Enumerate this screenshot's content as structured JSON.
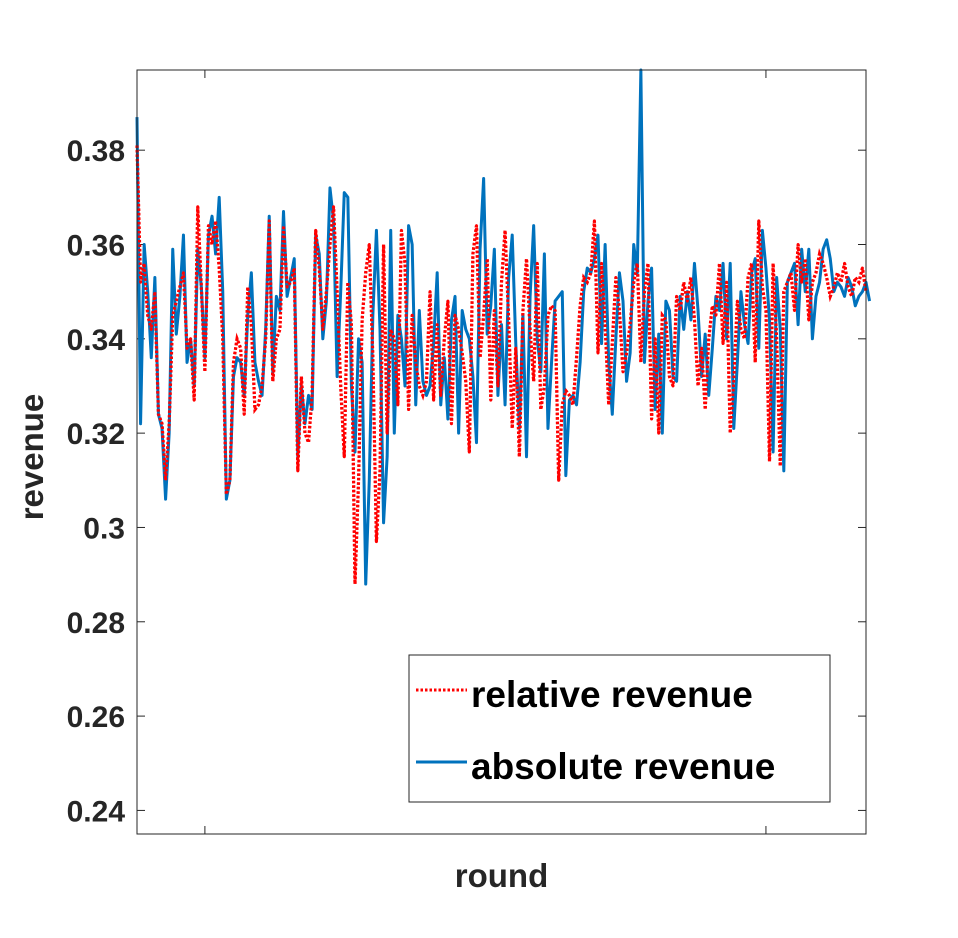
{
  "chart_data": {
    "type": "line",
    "title": "",
    "xlabel": "round",
    "ylabel": "revenue",
    "ylim": [
      0.235,
      0.397
    ],
    "xlim": [
      1,
      205
    ],
    "yticks": [
      0.24,
      0.26,
      0.28,
      0.3,
      0.32,
      0.34,
      0.36,
      0.38
    ],
    "ytick_labels": [
      "0.24",
      "0.26",
      "0.28",
      "0.3",
      "0.32",
      "0.34",
      "0.36",
      "0.38"
    ],
    "xticks": [
      20,
      177
    ],
    "xtick_labels": [
      "",
      ""
    ],
    "legend_position": "bottom-right",
    "grid": false,
    "series": [
      {
        "name": "relative revenue",
        "color": "#ff0000",
        "style": "dotted",
        "values": [
          0.381,
          0.352,
          0.356,
          0.345,
          0.342,
          0.35,
          0.324,
          0.322,
          0.31,
          0.322,
          0.345,
          0.348,
          0.351,
          0.354,
          0.338,
          0.34,
          0.327,
          0.368,
          0.351,
          0.333,
          0.364,
          0.36,
          0.365,
          0.355,
          0.34,
          0.307,
          0.31,
          0.335,
          0.34,
          0.338,
          0.324,
          0.351,
          0.343,
          0.325,
          0.326,
          0.33,
          0.34,
          0.365,
          0.331,
          0.34,
          0.342,
          0.364,
          0.351,
          0.352,
          0.355,
          0.312,
          0.332,
          0.32,
          0.318,
          0.328,
          0.363,
          0.355,
          0.342,
          0.35,
          0.36,
          0.368,
          0.35,
          0.33,
          0.315,
          0.352,
          0.343,
          0.288,
          0.31,
          0.344,
          0.354,
          0.36,
          0.336,
          0.297,
          0.312,
          0.36,
          0.32,
          0.342,
          0.34,
          0.326,
          0.363,
          0.356,
          0.325,
          0.345,
          0.335,
          0.33,
          0.328,
          0.331,
          0.35,
          0.327,
          0.343,
          0.328,
          0.34,
          0.348,
          0.322,
          0.345,
          0.342,
          0.337,
          0.331,
          0.316,
          0.358,
          0.364,
          0.336,
          0.345,
          0.357,
          0.327,
          0.346,
          0.33,
          0.352,
          0.363,
          0.344,
          0.321,
          0.338,
          0.315,
          0.346,
          0.357,
          0.342,
          0.331,
          0.356,
          0.325,
          0.33,
          0.345,
          0.347,
          0.346,
          0.31,
          0.326,
          0.329,
          0.328,
          0.326,
          0.336,
          0.347,
          0.353,
          0.352,
          0.354,
          0.365,
          0.337,
          0.356,
          0.343,
          0.326,
          0.339,
          0.353,
          0.346,
          0.333,
          0.337,
          0.343,
          0.352,
          0.356,
          0.335,
          0.35,
          0.356,
          0.323,
          0.34,
          0.32,
          0.345,
          0.344,
          0.332,
          0.33,
          0.349,
          0.346,
          0.352,
          0.348,
          0.353,
          0.344,
          0.33,
          0.338,
          0.325,
          0.34,
          0.347,
          0.345,
          0.356,
          0.339,
          0.352,
          0.32,
          0.331,
          0.348,
          0.342,
          0.34,
          0.353,
          0.356,
          0.335,
          0.365,
          0.351,
          0.346,
          0.314,
          0.356,
          0.34,
          0.313,
          0.35,
          0.352,
          0.354,
          0.346,
          0.36,
          0.352,
          0.357,
          0.344,
          0.352,
          0.354,
          0.358,
          0.356,
          0.353,
          0.349,
          0.351,
          0.354,
          0.352,
          0.356,
          0.351,
          0.349,
          0.353,
          0.352,
          0.355,
          0.35
        ]
      },
      {
        "name": "absolute revenue",
        "color": "#0072bd",
        "style": "solid",
        "values": [
          0.387,
          0.322,
          0.36,
          0.35,
          0.336,
          0.353,
          0.324,
          0.321,
          0.306,
          0.32,
          0.359,
          0.341,
          0.349,
          0.362,
          0.335,
          0.34,
          0.33,
          0.359,
          0.351,
          0.336,
          0.362,
          0.366,
          0.358,
          0.37,
          0.35,
          0.306,
          0.31,
          0.332,
          0.336,
          0.335,
          0.328,
          0.345,
          0.354,
          0.335,
          0.331,
          0.328,
          0.342,
          0.366,
          0.333,
          0.349,
          0.346,
          0.367,
          0.349,
          0.353,
          0.357,
          0.315,
          0.33,
          0.322,
          0.328,
          0.325,
          0.362,
          0.358,
          0.34,
          0.348,
          0.372,
          0.365,
          0.332,
          0.35,
          0.371,
          0.37,
          0.33,
          0.316,
          0.34,
          0.335,
          0.288,
          0.31,
          0.345,
          0.363,
          0.342,
          0.301,
          0.315,
          0.363,
          0.32,
          0.345,
          0.34,
          0.33,
          0.364,
          0.36,
          0.326,
          0.346,
          0.331,
          0.328,
          0.33,
          0.339,
          0.354,
          0.326,
          0.336,
          0.323,
          0.344,
          0.349,
          0.32,
          0.346,
          0.342,
          0.34,
          0.332,
          0.318,
          0.359,
          0.374,
          0.341,
          0.347,
          0.359,
          0.328,
          0.343,
          0.326,
          0.353,
          0.362,
          0.339,
          0.321,
          0.345,
          0.315,
          0.349,
          0.364,
          0.34,
          0.333,
          0.358,
          0.321,
          0.335,
          0.348,
          0.349,
          0.35,
          0.311,
          0.327,
          0.328,
          0.326,
          0.335,
          0.35,
          0.355,
          0.354,
          0.357,
          0.362,
          0.339,
          0.36,
          0.335,
          0.324,
          0.34,
          0.354,
          0.348,
          0.331,
          0.337,
          0.36,
          0.354,
          0.397,
          0.335,
          0.348,
          0.355,
          0.325,
          0.341,
          0.32,
          0.348,
          0.346,
          0.332,
          0.331,
          0.349,
          0.342,
          0.35,
          0.344,
          0.356,
          0.346,
          0.332,
          0.341,
          0.328,
          0.338,
          0.349,
          0.346,
          0.356,
          0.34,
          0.356,
          0.321,
          0.335,
          0.35,
          0.343,
          0.339,
          0.354,
          0.357,
          0.338,
          0.363,
          0.355,
          0.344,
          0.316,
          0.353,
          0.342,
          0.312,
          0.352,
          0.354,
          0.356,
          0.343,
          0.359,
          0.35,
          0.359,
          0.34,
          0.349,
          0.352,
          0.359,
          0.361,
          0.357,
          0.35,
          0.352,
          0.351,
          0.349,
          0.353,
          0.351,
          0.347,
          0.349,
          0.35,
          0.352,
          0.348
        ]
      }
    ]
  }
}
